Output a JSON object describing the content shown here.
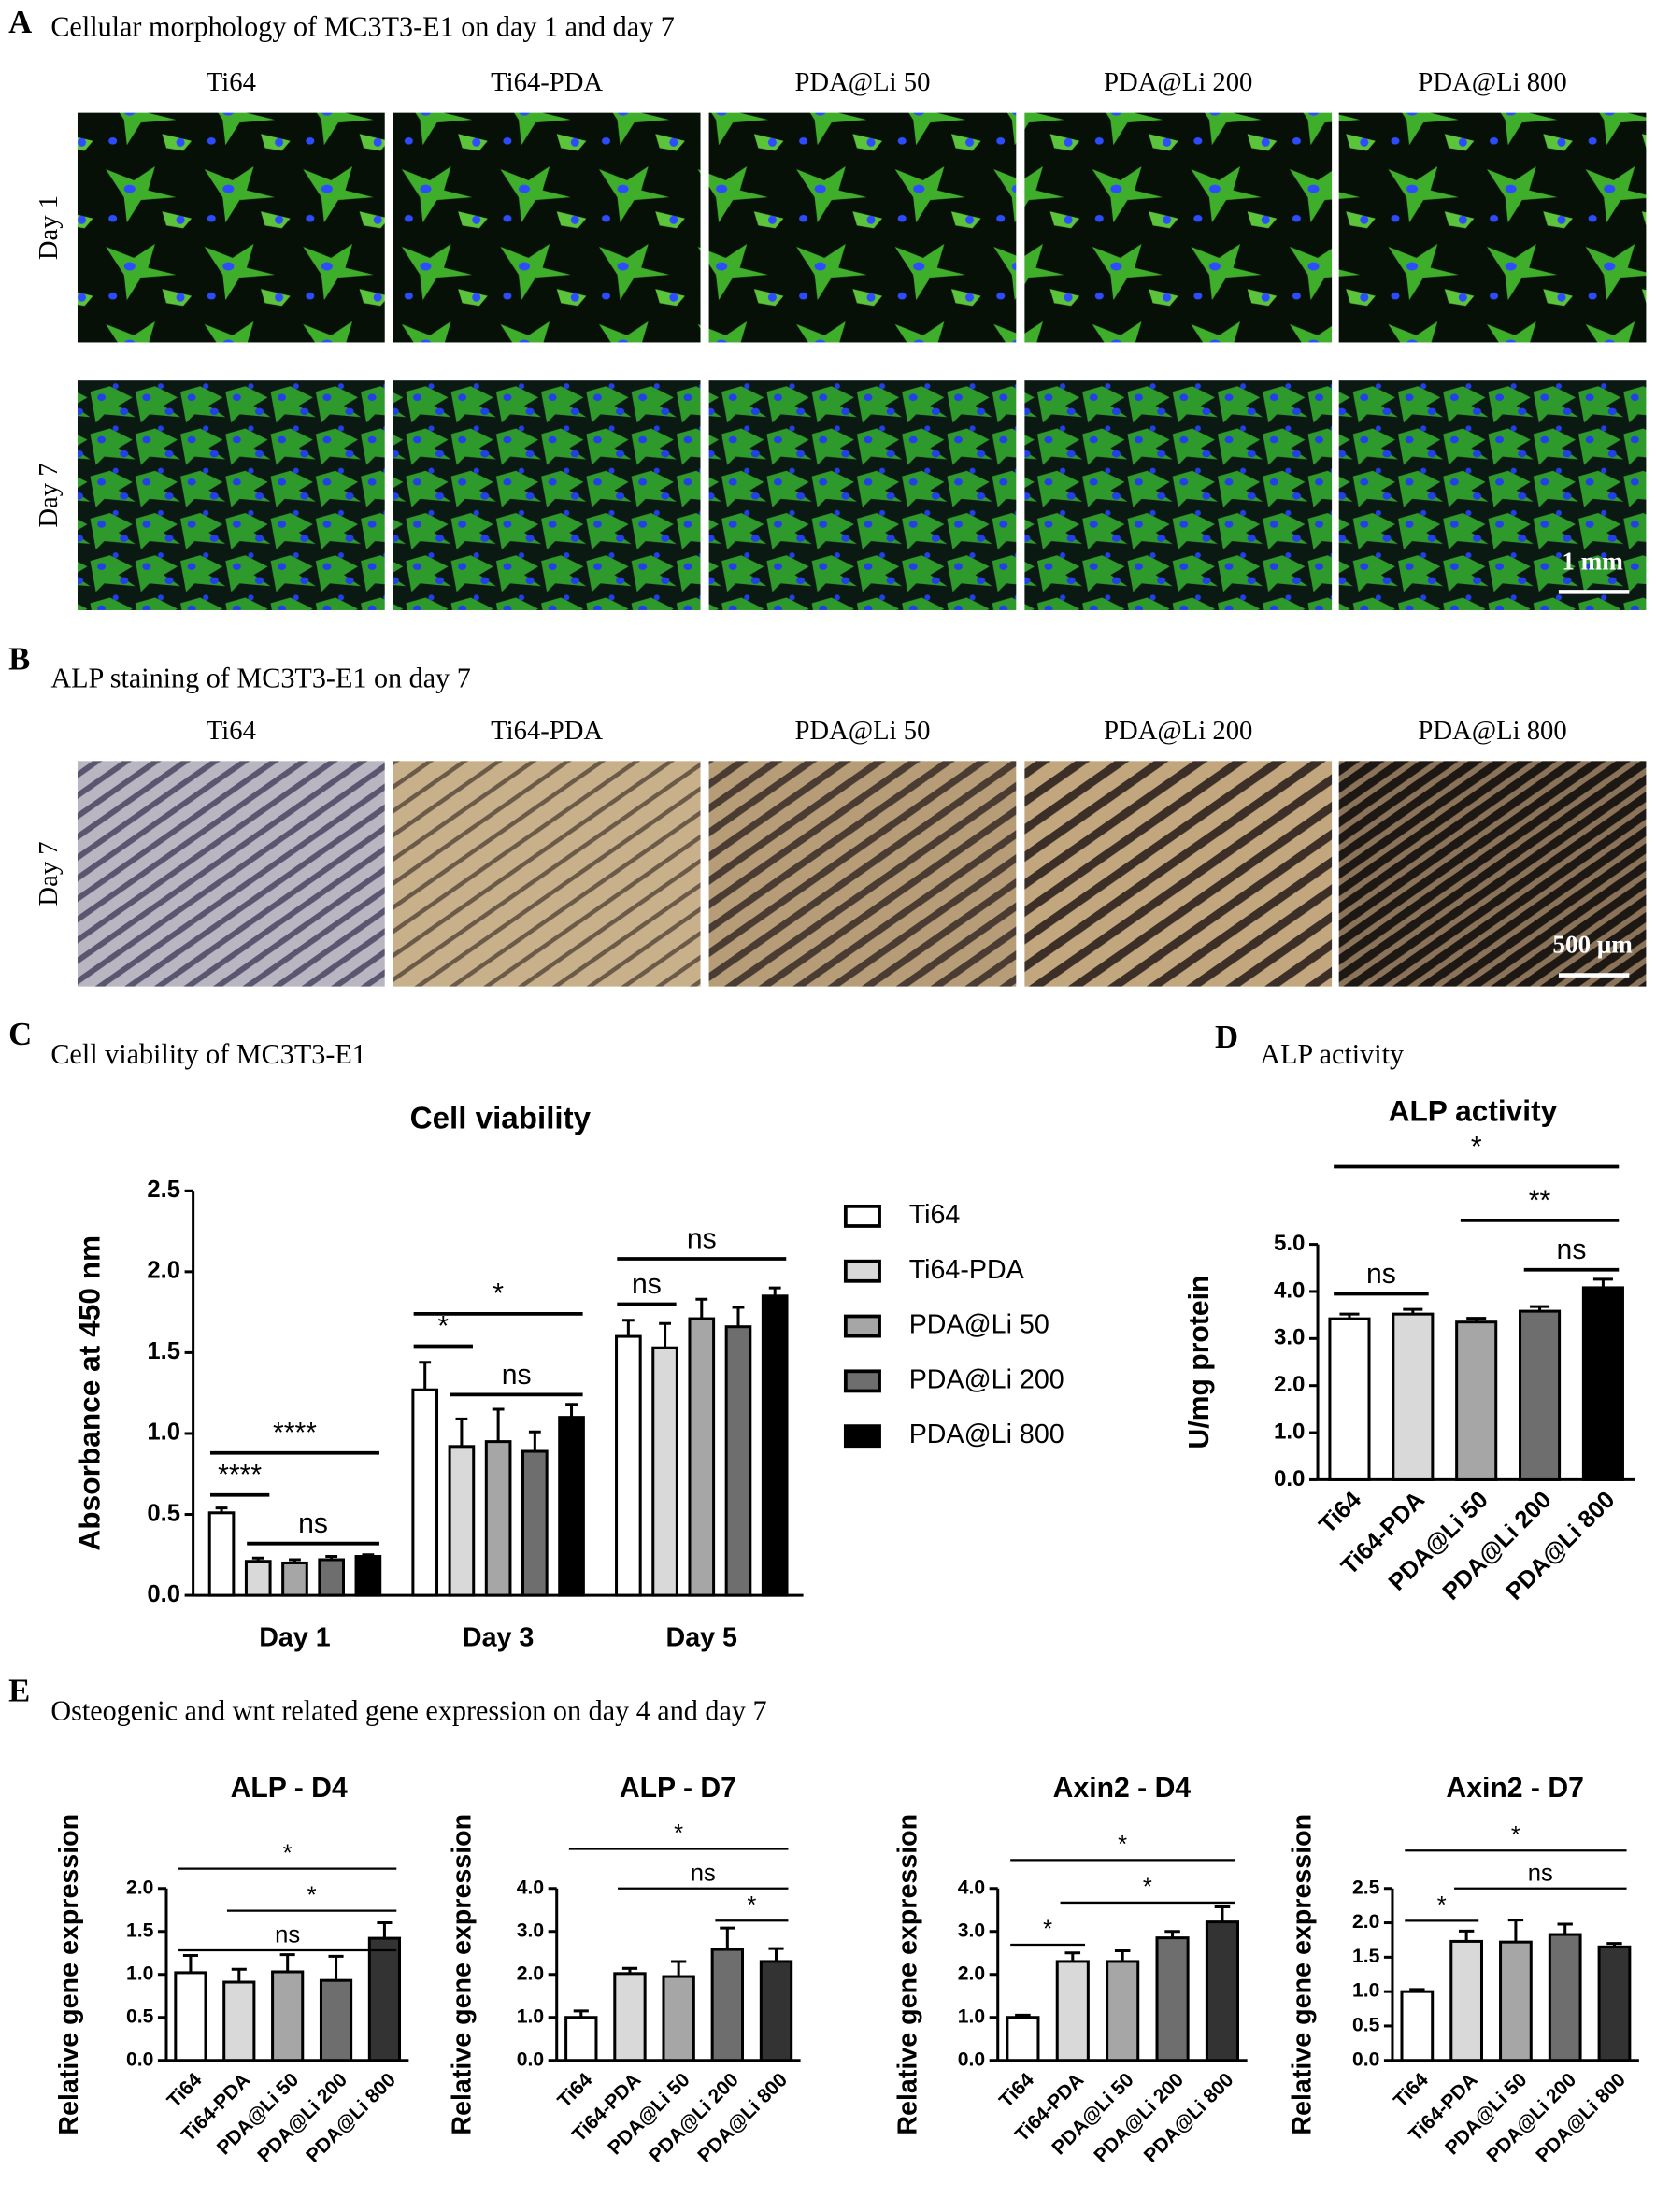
{
  "panel_a": {
    "label": "A",
    "title": "Cellular morphology of MC3T3-E1 on day 1 and day 7",
    "columns": [
      "Ti64",
      "Ti64-PDA",
      "PDA@Li 50",
      "PDA@Li 200",
      "PDA@Li 800"
    ],
    "rows": [
      "Day 1",
      "Day 7"
    ],
    "scale_bar": "1 mm"
  },
  "panel_b": {
    "label": "B",
    "title": "ALP staining of MC3T3-E1 on day 7",
    "columns": [
      "Ti64",
      "Ti64-PDA",
      "PDA@Li 50",
      "PDA@Li 200",
      "PDA@Li 800"
    ],
    "rows": [
      "Day 7"
    ],
    "scale_bar": "500 μm"
  },
  "panel_c": {
    "label": "C",
    "title": "Cell viability of MC3T3-E1"
  },
  "panel_d": {
    "label": "D",
    "title": "ALP activity"
  },
  "panel_e": {
    "label": "E",
    "title": "Osteogenic and wnt related gene expression on day 4 and day 7"
  },
  "chart_data": [
    {
      "type": "grouped_bar",
      "title": "Cell viability",
      "ylabel": "Absorbance at 450 nm",
      "categories": [
        "Day 1",
        "Day 3",
        "Day 5"
      ],
      "series": [
        {
          "name": "Ti64",
          "color": "#ffffff",
          "values": [
            0.51,
            1.27,
            1.6
          ],
          "errors": [
            0.03,
            0.17,
            0.1
          ]
        },
        {
          "name": "Ti64-PDA",
          "color": "#d9d9d9",
          "values": [
            0.21,
            0.92,
            1.53
          ],
          "errors": [
            0.02,
            0.17,
            0.15
          ]
        },
        {
          "name": "PDA@Li 50",
          "color": "#a6a6a6",
          "values": [
            0.2,
            0.95,
            1.71
          ],
          "errors": [
            0.02,
            0.2,
            0.12
          ]
        },
        {
          "name": "PDA@Li 200",
          "color": "#6e6e6e",
          "values": [
            0.22,
            0.89,
            1.66
          ],
          "errors": [
            0.02,
            0.12,
            0.12
          ]
        },
        {
          "name": "PDA@Li 800",
          "color": "#000000",
          "values": [
            0.24,
            1.1,
            1.85
          ],
          "errors": [
            0.01,
            0.08,
            0.05
          ]
        }
      ],
      "ylim": [
        0,
        2.5
      ],
      "yticks": [
        {
          "value": 0,
          "label": "0.0"
        },
        0.5,
        {
          "value": 1,
          "label": "1.0"
        },
        1.5,
        {
          "value": 2,
          "label": "2.0"
        },
        2.5
      ],
      "legend": "right",
      "annotations": [
        {
          "text": "****",
          "group": 0,
          "from": 0,
          "to": 1,
          "y": 0.62
        },
        {
          "text": "****",
          "group": 0,
          "from": 0,
          "to": 4,
          "y": 0.88
        },
        {
          "text": "ns",
          "group": 0,
          "from": 1,
          "to": 4,
          "y": 0.32
        },
        {
          "text": "*",
          "group": 1,
          "from": 0,
          "to": 1,
          "y": 1.54
        },
        {
          "text": "*",
          "group": 1,
          "from": 0,
          "to": 4,
          "y": 1.74
        },
        {
          "text": "ns",
          "group": 1,
          "from": 1,
          "to": 4,
          "y": 1.24
        },
        {
          "text": "ns",
          "group": 2,
          "from": 0,
          "to": 1,
          "y": 1.8
        },
        {
          "text": "ns",
          "group": 2,
          "from": 0,
          "to": 4,
          "y": 2.08
        }
      ]
    },
    {
      "type": "bar",
      "title": "ALP activity",
      "ylabel": "U/mg protein",
      "categories": [
        "Ti64",
        "Ti64-PDA",
        "PDA@Li 50",
        "PDA@Li 200",
        "PDA@Li 800"
      ],
      "values": [
        3.42,
        3.52,
        3.35,
        3.58,
        4.08
      ],
      "errors": [
        0.1,
        0.1,
        0.08,
        0.1,
        0.18
      ],
      "colors": [
        "#ffffff",
        "#d9d9d9",
        "#a6a6a6",
        "#6e6e6e",
        "#000000"
      ],
      "ylim": [
        0,
        5
      ],
      "yticks": [
        {
          "value": 0,
          "label": "0.0"
        },
        {
          "value": 1,
          "label": "1.0"
        },
        {
          "value": 2,
          "label": "2.0"
        },
        {
          "value": 3,
          "label": "3.0"
        },
        {
          "value": 4,
          "label": "4.0"
        },
        {
          "value": 5,
          "label": "5.0"
        }
      ],
      "annotations": [
        {
          "text": "ns",
          "from": 0,
          "to": 1,
          "y": 3.95
        },
        {
          "text": "*",
          "from": 0,
          "to": 4,
          "y": 6.65
        },
        {
          "text": "**",
          "from": 2,
          "to": 4,
          "y": 5.51
        },
        {
          "text": "ns",
          "from": 3,
          "to": 4,
          "y": 4.46
        }
      ]
    },
    {
      "type": "bar",
      "title": "ALP - D4",
      "ylabel": "Relative gene expression",
      "categories": [
        "Ti64",
        "Ti64-PDA",
        "PDA@Li 50",
        "PDA@Li 200",
        "PDA@Li 800"
      ],
      "values": [
        1.02,
        0.91,
        1.03,
        0.93,
        1.42
      ],
      "errors": [
        0.2,
        0.15,
        0.2,
        0.28,
        0.18
      ],
      "colors": [
        "#ffffff",
        "#d9d9d9",
        "#a6a6a6",
        "#6e6e6e",
        "#333333"
      ],
      "ylim": [
        0,
        2
      ],
      "yticks": [
        {
          "value": 0,
          "label": "0.0"
        },
        0.5,
        {
          "value": 1,
          "label": "1.0"
        },
        1.5,
        {
          "value": 2,
          "label": "2.0"
        }
      ],
      "annotations": [
        {
          "text": "ns",
          "from": 0,
          "to": 4,
          "y": 1.28
        },
        {
          "text": "*",
          "from": 1,
          "to": 4,
          "y": 1.74
        },
        {
          "text": "*",
          "from": 0,
          "to": 4,
          "y": 2.23
        }
      ]
    },
    {
      "type": "bar",
      "title": "ALP - D7",
      "ylabel": "Relative gene expression",
      "categories": [
        "Ti64",
        "Ti64-PDA",
        "PDA@Li 50",
        "PDA@Li 200",
        "PDA@Li 800"
      ],
      "values": [
        1.0,
        2.02,
        1.95,
        2.58,
        2.3
      ],
      "errors": [
        0.15,
        0.12,
        0.35,
        0.5,
        0.3
      ],
      "colors": [
        "#ffffff",
        "#d9d9d9",
        "#a6a6a6",
        "#6e6e6e",
        "#333333"
      ],
      "ylim": [
        0,
        4
      ],
      "yticks": [
        {
          "value": 0,
          "label": "0.0"
        },
        {
          "value": 1,
          "label": "1.0"
        },
        {
          "value": 2,
          "label": "2.0"
        },
        {
          "value": 3,
          "label": "3.0"
        },
        {
          "value": 4,
          "label": "4.0"
        }
      ],
      "annotations": [
        {
          "text": "*",
          "from": 3,
          "to": 4,
          "y": 3.25
        },
        {
          "text": "ns",
          "from": 1,
          "to": 4,
          "y": 4.0
        },
        {
          "text": "*",
          "from": 0,
          "to": 4,
          "y": 4.92
        }
      ]
    },
    {
      "type": "bar",
      "title": "Axin2 - D4",
      "ylabel": "Relative gene expression",
      "categories": [
        "Ti64",
        "Ti64-PDA",
        "PDA@Li 50",
        "PDA@Li 200",
        "PDA@Li 800"
      ],
      "values": [
        1.0,
        2.3,
        2.3,
        2.85,
        3.22
      ],
      "errors": [
        0.05,
        0.2,
        0.25,
        0.15,
        0.35
      ],
      "colors": [
        "#ffffff",
        "#d9d9d9",
        "#a6a6a6",
        "#6e6e6e",
        "#333333"
      ],
      "ylim": [
        0,
        4
      ],
      "yticks": [
        {
          "value": 0,
          "label": "0.0"
        },
        {
          "value": 1,
          "label": "1.0"
        },
        {
          "value": 2,
          "label": "2.0"
        },
        {
          "value": 3,
          "label": "3.0"
        },
        {
          "value": 4,
          "label": "4.0"
        }
      ],
      "annotations": [
        {
          "text": "*",
          "from": 0,
          "to": 1,
          "y": 2.69
        },
        {
          "text": "*",
          "from": 1,
          "to": 4,
          "y": 3.67
        },
        {
          "text": "*",
          "from": 0,
          "to": 4,
          "y": 4.66
        }
      ]
    },
    {
      "type": "bar",
      "title": "Axin2 - D7",
      "ylabel": "Relative gene expression",
      "categories": [
        "Ti64",
        "Ti64-PDA",
        "PDA@Li 50",
        "PDA@Li 200",
        "PDA@Li 800"
      ],
      "values": [
        1.0,
        1.73,
        1.72,
        1.83,
        1.65
      ],
      "errors": [
        0.03,
        0.15,
        0.32,
        0.15,
        0.05
      ],
      "colors": [
        "#ffffff",
        "#d9d9d9",
        "#a6a6a6",
        "#6e6e6e",
        "#333333"
      ],
      "ylim": [
        0,
        2.5
      ],
      "yticks": [
        {
          "value": 0,
          "label": "0.0"
        },
        0.5,
        {
          "value": 1,
          "label": "1.0"
        },
        1.5,
        {
          "value": 2,
          "label": "2.0"
        },
        2.5
      ],
      "annotations": [
        {
          "text": "*",
          "from": 0,
          "to": 1,
          "y": 2.03
        },
        {
          "text": "ns",
          "from": 1,
          "to": 4,
          "y": 2.5
        },
        {
          "text": "*",
          "from": 0,
          "to": 4,
          "y": 3.05
        }
      ]
    }
  ]
}
